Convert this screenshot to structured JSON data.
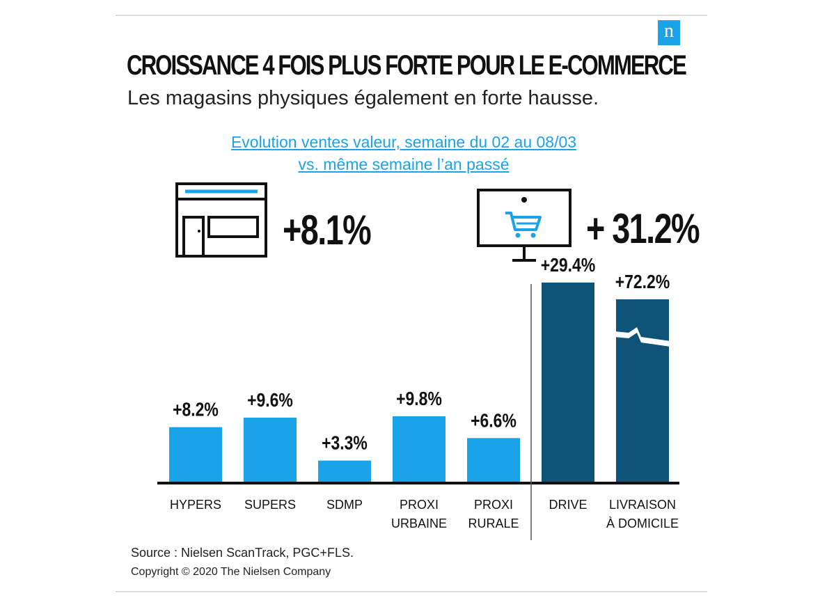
{
  "brand": {
    "logo_letter": "n",
    "accent_color": "#1aa3e8",
    "dark_color": "#0d5478"
  },
  "header": {
    "title": "CROISSANCE 4 FOIS PLUS FORTE POUR LE E-COMMERCE",
    "subtitle": "Les magasins physiques également en forte hausse."
  },
  "caption": {
    "line1": "Evolution ventes valeur, semaine du 02 au 08/03",
    "line2": "vs. même semaine l’an passé"
  },
  "highlights": {
    "store": {
      "icon": "store-icon",
      "value_label": "+8.1%"
    },
    "online": {
      "icon": "computer-cart-icon",
      "value_label": "+ 31.2%"
    }
  },
  "chart_data": {
    "type": "bar",
    "categories": [
      [
        "HYPERS"
      ],
      [
        "SUPERS"
      ],
      [
        "SDMP"
      ],
      [
        "PROXI",
        "URBAINE"
      ],
      [
        "PROXI",
        "RURALE"
      ],
      [
        "DRIVE"
      ],
      [
        "LIVRAISON",
        "À DOMICILE"
      ]
    ],
    "values": [
      8.2,
      9.6,
      3.3,
      9.8,
      6.6,
      29.4,
      72.2
    ],
    "value_labels": [
      "+8.2%",
      "+9.6%",
      "+3.3%",
      "+9.8%",
      "+6.6%",
      "+29.4%",
      "+72.2%"
    ],
    "groups": [
      "physical",
      "physical",
      "physical",
      "physical",
      "physical",
      "online",
      "online"
    ],
    "colors": {
      "physical": "#1aa3e8",
      "online": "#0d5478"
    },
    "axis_break_on": [
      6
    ]
  },
  "footer": {
    "source": "Source : Nielsen ScanTrack, PGC+FLS.",
    "copyright": "Copyright © 2020 The Nielsen Company"
  }
}
